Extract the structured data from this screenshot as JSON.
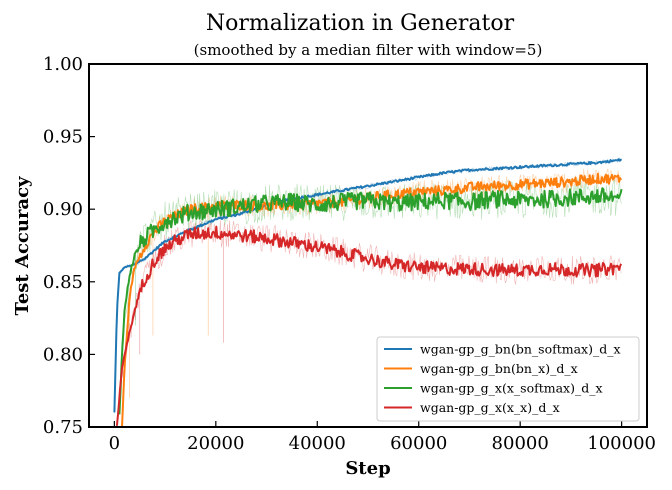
{
  "chart_data": {
    "type": "line",
    "title": "Normalization in Generator",
    "subtitle": "(smoothed by a median filter with window=5)",
    "xlabel": "Step",
    "ylabel": "Test Accuracy",
    "xlim": [
      -5000,
      105000
    ],
    "ylim": [
      0.75,
      1.0
    ],
    "xticks": [
      0,
      20000,
      40000,
      60000,
      80000,
      100000
    ],
    "yticks": [
      0.75,
      0.8,
      0.85,
      0.9,
      0.95,
      1.0
    ],
    "xtick_labels": [
      "0",
      "20000",
      "40000",
      "60000",
      "80000",
      "100000"
    ],
    "ytick_labels": [
      "0.75",
      "0.80",
      "0.85",
      "0.90",
      "0.95",
      "1.00"
    ],
    "grid": false,
    "legend_position": "bottom-right",
    "series": [
      {
        "name": "wgan-gp_g_bn(bn_softmax)_d_x",
        "color": "#1f77b4",
        "x": [
          0,
          500,
          1000,
          2000,
          4000,
          6000,
          8000,
          10000,
          15000,
          20000,
          25000,
          30000,
          35000,
          40000,
          45000,
          50000,
          55000,
          60000,
          65000,
          70000,
          75000,
          80000,
          85000,
          90000,
          95000,
          100000
        ],
        "y": [
          0.76,
          0.83,
          0.856,
          0.86,
          0.862,
          0.866,
          0.872,
          0.878,
          0.886,
          0.893,
          0.897,
          0.903,
          0.907,
          0.91,
          0.913,
          0.916,
          0.919,
          0.922,
          0.925,
          0.927,
          0.928,
          0.929,
          0.93,
          0.931,
          0.932,
          0.934
        ]
      },
      {
        "name": "wgan-gp_g_bn(bn_x)_d_x",
        "color": "#ff7f0e",
        "x": [
          1500,
          2000,
          3000,
          4000,
          6000,
          8000,
          10000,
          15000,
          20000,
          25000,
          30000,
          35000,
          40000,
          45000,
          50000,
          55000,
          60000,
          65000,
          70000,
          75000,
          80000,
          85000,
          90000,
          95000,
          100000
        ],
        "y": [
          0.75,
          0.79,
          0.84,
          0.86,
          0.875,
          0.885,
          0.892,
          0.9,
          0.902,
          0.903,
          0.902,
          0.903,
          0.904,
          0.905,
          0.908,
          0.91,
          0.912,
          0.913,
          0.915,
          0.916,
          0.917,
          0.918,
          0.919,
          0.921,
          0.921
        ]
      },
      {
        "name": "wgan-gp_g_x(x_softmax)_d_x",
        "color": "#2ca02c",
        "x": [
          1000,
          1500,
          2000,
          3000,
          4000,
          5000,
          6000,
          8000,
          10000,
          15000,
          20000,
          25000,
          30000,
          35000,
          40000,
          45000,
          50000,
          55000,
          60000,
          65000,
          70000,
          75000,
          80000,
          85000,
          90000,
          95000,
          100000
        ],
        "y": [
          0.76,
          0.8,
          0.83,
          0.855,
          0.868,
          0.875,
          0.88,
          0.886,
          0.892,
          0.898,
          0.9,
          0.902,
          0.904,
          0.905,
          0.903,
          0.905,
          0.906,
          0.904,
          0.905,
          0.906,
          0.905,
          0.907,
          0.906,
          0.907,
          0.908,
          0.909,
          0.908
        ]
      },
      {
        "name": "wgan-gp_g_x(x_x)_d_x",
        "color": "#d62728",
        "x": [
          500,
          1000,
          1500,
          2000,
          3000,
          4000,
          5000,
          6000,
          8000,
          10000,
          12000,
          15000,
          20000,
          25000,
          30000,
          35000,
          40000,
          45000,
          50000,
          55000,
          60000,
          65000,
          70000,
          75000,
          80000,
          85000,
          90000,
          95000,
          100000
        ],
        "y": [
          0.75,
          0.77,
          0.79,
          0.8,
          0.815,
          0.83,
          0.843,
          0.852,
          0.865,
          0.873,
          0.878,
          0.883,
          0.884,
          0.882,
          0.88,
          0.877,
          0.874,
          0.87,
          0.866,
          0.862,
          0.86,
          0.859,
          0.859,
          0.858,
          0.858,
          0.859,
          0.858,
          0.858,
          0.86
        ]
      }
    ]
  }
}
